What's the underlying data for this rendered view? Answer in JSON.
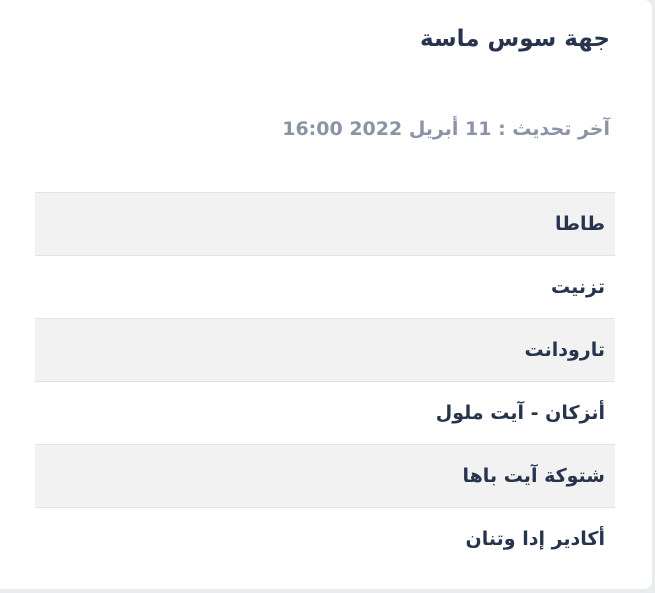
{
  "region": {
    "title": "جهة سوس ماسة",
    "last_update": "آخر تحديث : 11 أبريل 2022 16:00"
  },
  "provinces": [
    {
      "label": "طاطا"
    },
    {
      "label": "تزنيت"
    },
    {
      "label": "تارودانت"
    },
    {
      "label": "أنزكان - آيت ملول"
    },
    {
      "label": "شتوكة آيت باها"
    },
    {
      "label": "أكادير إدا وتنان"
    }
  ]
}
